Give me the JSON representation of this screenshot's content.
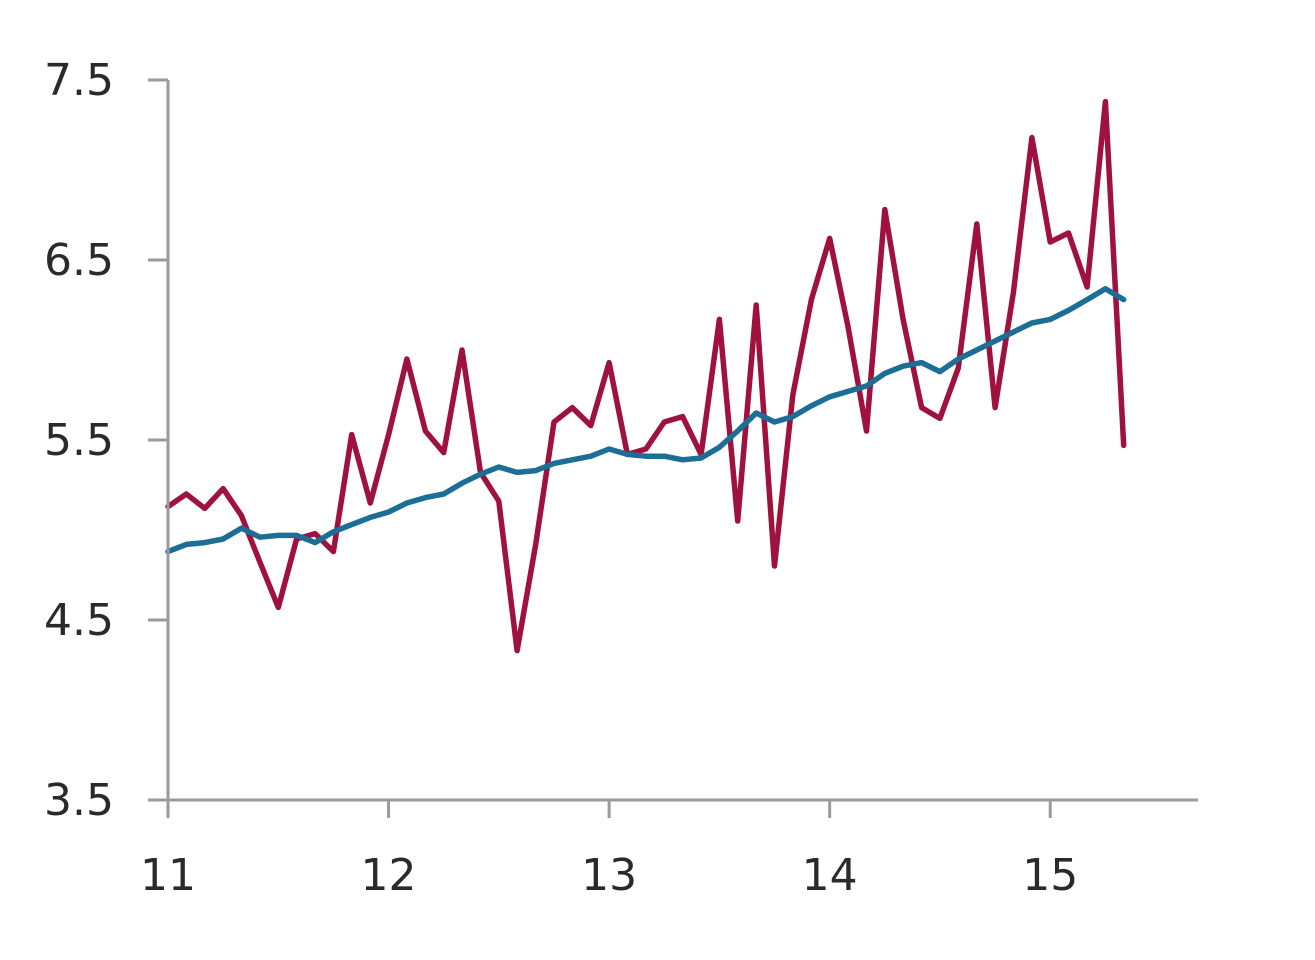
{
  "chart_data": {
    "type": "line",
    "title": "",
    "xlabel": "",
    "ylabel": "",
    "xlim": [
      11,
      15.67
    ],
    "ylim": [
      3.5,
      7.5
    ],
    "x_ticks": [
      11,
      12,
      13,
      14,
      15
    ],
    "x_tick_labels": [
      "11",
      "12",
      "13",
      "14",
      "15"
    ],
    "y_ticks": [
      3.5,
      4.5,
      5.5,
      6.5,
      7.5
    ],
    "y_tick_labels": [
      "3.5",
      "4.5",
      "5.5",
      "6.5",
      "7.5"
    ],
    "grid": false,
    "legend": "none",
    "series": [
      {
        "color": "#a0123e",
        "x": [
          11.0,
          11.083,
          11.167,
          11.25,
          11.333,
          11.417,
          11.5,
          11.583,
          11.667,
          11.75,
          11.833,
          11.917,
          12.0,
          12.083,
          12.167,
          12.25,
          12.333,
          12.417,
          12.5,
          12.583,
          12.667,
          12.75,
          12.833,
          12.917,
          13.0,
          13.083,
          13.167,
          13.25,
          13.333,
          13.417,
          13.5,
          13.583,
          13.667,
          13.75,
          13.833,
          13.917,
          14.0,
          14.083,
          14.167,
          14.25,
          14.333,
          14.417,
          14.5,
          14.583,
          14.667,
          14.75,
          14.833,
          14.917,
          15.0,
          15.083,
          15.167,
          15.25,
          15.333
        ],
        "values": [
          5.13,
          5.2,
          5.12,
          5.23,
          5.08,
          4.82,
          4.57,
          4.95,
          4.98,
          4.88,
          5.53,
          5.15,
          5.53,
          5.95,
          5.55,
          5.43,
          6.0,
          5.32,
          5.16,
          4.33,
          4.92,
          5.6,
          5.68,
          5.58,
          5.93,
          5.42,
          5.45,
          5.6,
          5.63,
          5.42,
          6.17,
          5.05,
          6.25,
          4.8,
          5.75,
          6.28,
          6.62,
          6.13,
          5.55,
          6.78,
          6.17,
          5.68,
          5.62,
          5.9,
          6.7,
          5.68,
          6.32,
          7.18,
          6.6,
          6.65,
          6.35,
          7.38,
          5.47
        ]
      },
      {
        "color": "#1c6e96",
        "x": [
          11.0,
          11.083,
          11.167,
          11.25,
          11.333,
          11.417,
          11.5,
          11.583,
          11.667,
          11.75,
          11.833,
          11.917,
          12.0,
          12.083,
          12.167,
          12.25,
          12.333,
          12.417,
          12.5,
          12.583,
          12.667,
          12.75,
          12.833,
          12.917,
          13.0,
          13.083,
          13.167,
          13.25,
          13.333,
          13.417,
          13.5,
          13.583,
          13.667,
          13.75,
          13.833,
          13.917,
          14.0,
          14.083,
          14.167,
          14.25,
          14.333,
          14.417,
          14.5,
          14.583,
          14.667,
          14.75,
          14.833,
          14.917,
          15.0,
          15.083,
          15.167,
          15.25,
          15.333
        ],
        "values": [
          4.88,
          4.92,
          4.93,
          4.95,
          5.01,
          4.96,
          4.97,
          4.97,
          4.93,
          4.99,
          5.03,
          5.07,
          5.1,
          5.15,
          5.18,
          5.2,
          5.26,
          5.31,
          5.35,
          5.32,
          5.33,
          5.37,
          5.39,
          5.41,
          5.45,
          5.42,
          5.41,
          5.41,
          5.39,
          5.4,
          5.46,
          5.55,
          5.65,
          5.6,
          5.63,
          5.69,
          5.74,
          5.77,
          5.8,
          5.87,
          5.91,
          5.93,
          5.88,
          5.95,
          6.0,
          6.05,
          6.1,
          6.15,
          6.17,
          6.22,
          6.28,
          6.34,
          6.28
        ]
      }
    ]
  }
}
